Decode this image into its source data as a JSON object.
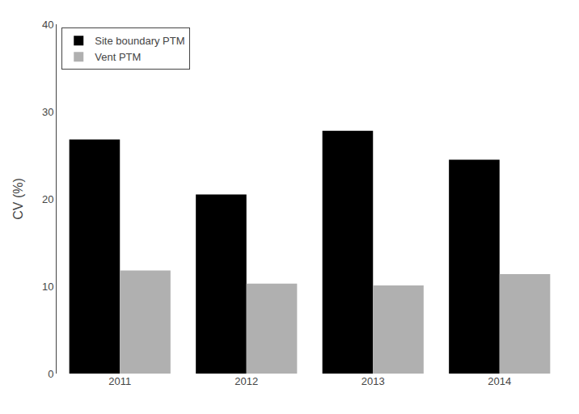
{
  "chart_data": {
    "type": "bar",
    "categories": [
      "2011",
      "2012",
      "2013",
      "2014"
    ],
    "series": [
      {
        "name": "Site boundary PTM",
        "color": "#000000",
        "values": [
          26.8,
          20.5,
          27.8,
          24.5
        ]
      },
      {
        "name": "Vent PTM",
        "color": "#b0b0b0",
        "values": [
          11.8,
          10.3,
          10.1,
          11.4
        ]
      }
    ],
    "ylabel": "CV (%)",
    "ylim": [
      0,
      40
    ],
    "yticks": [
      0,
      10,
      20,
      30,
      40
    ],
    "grid": false,
    "legend": "upper left"
  }
}
